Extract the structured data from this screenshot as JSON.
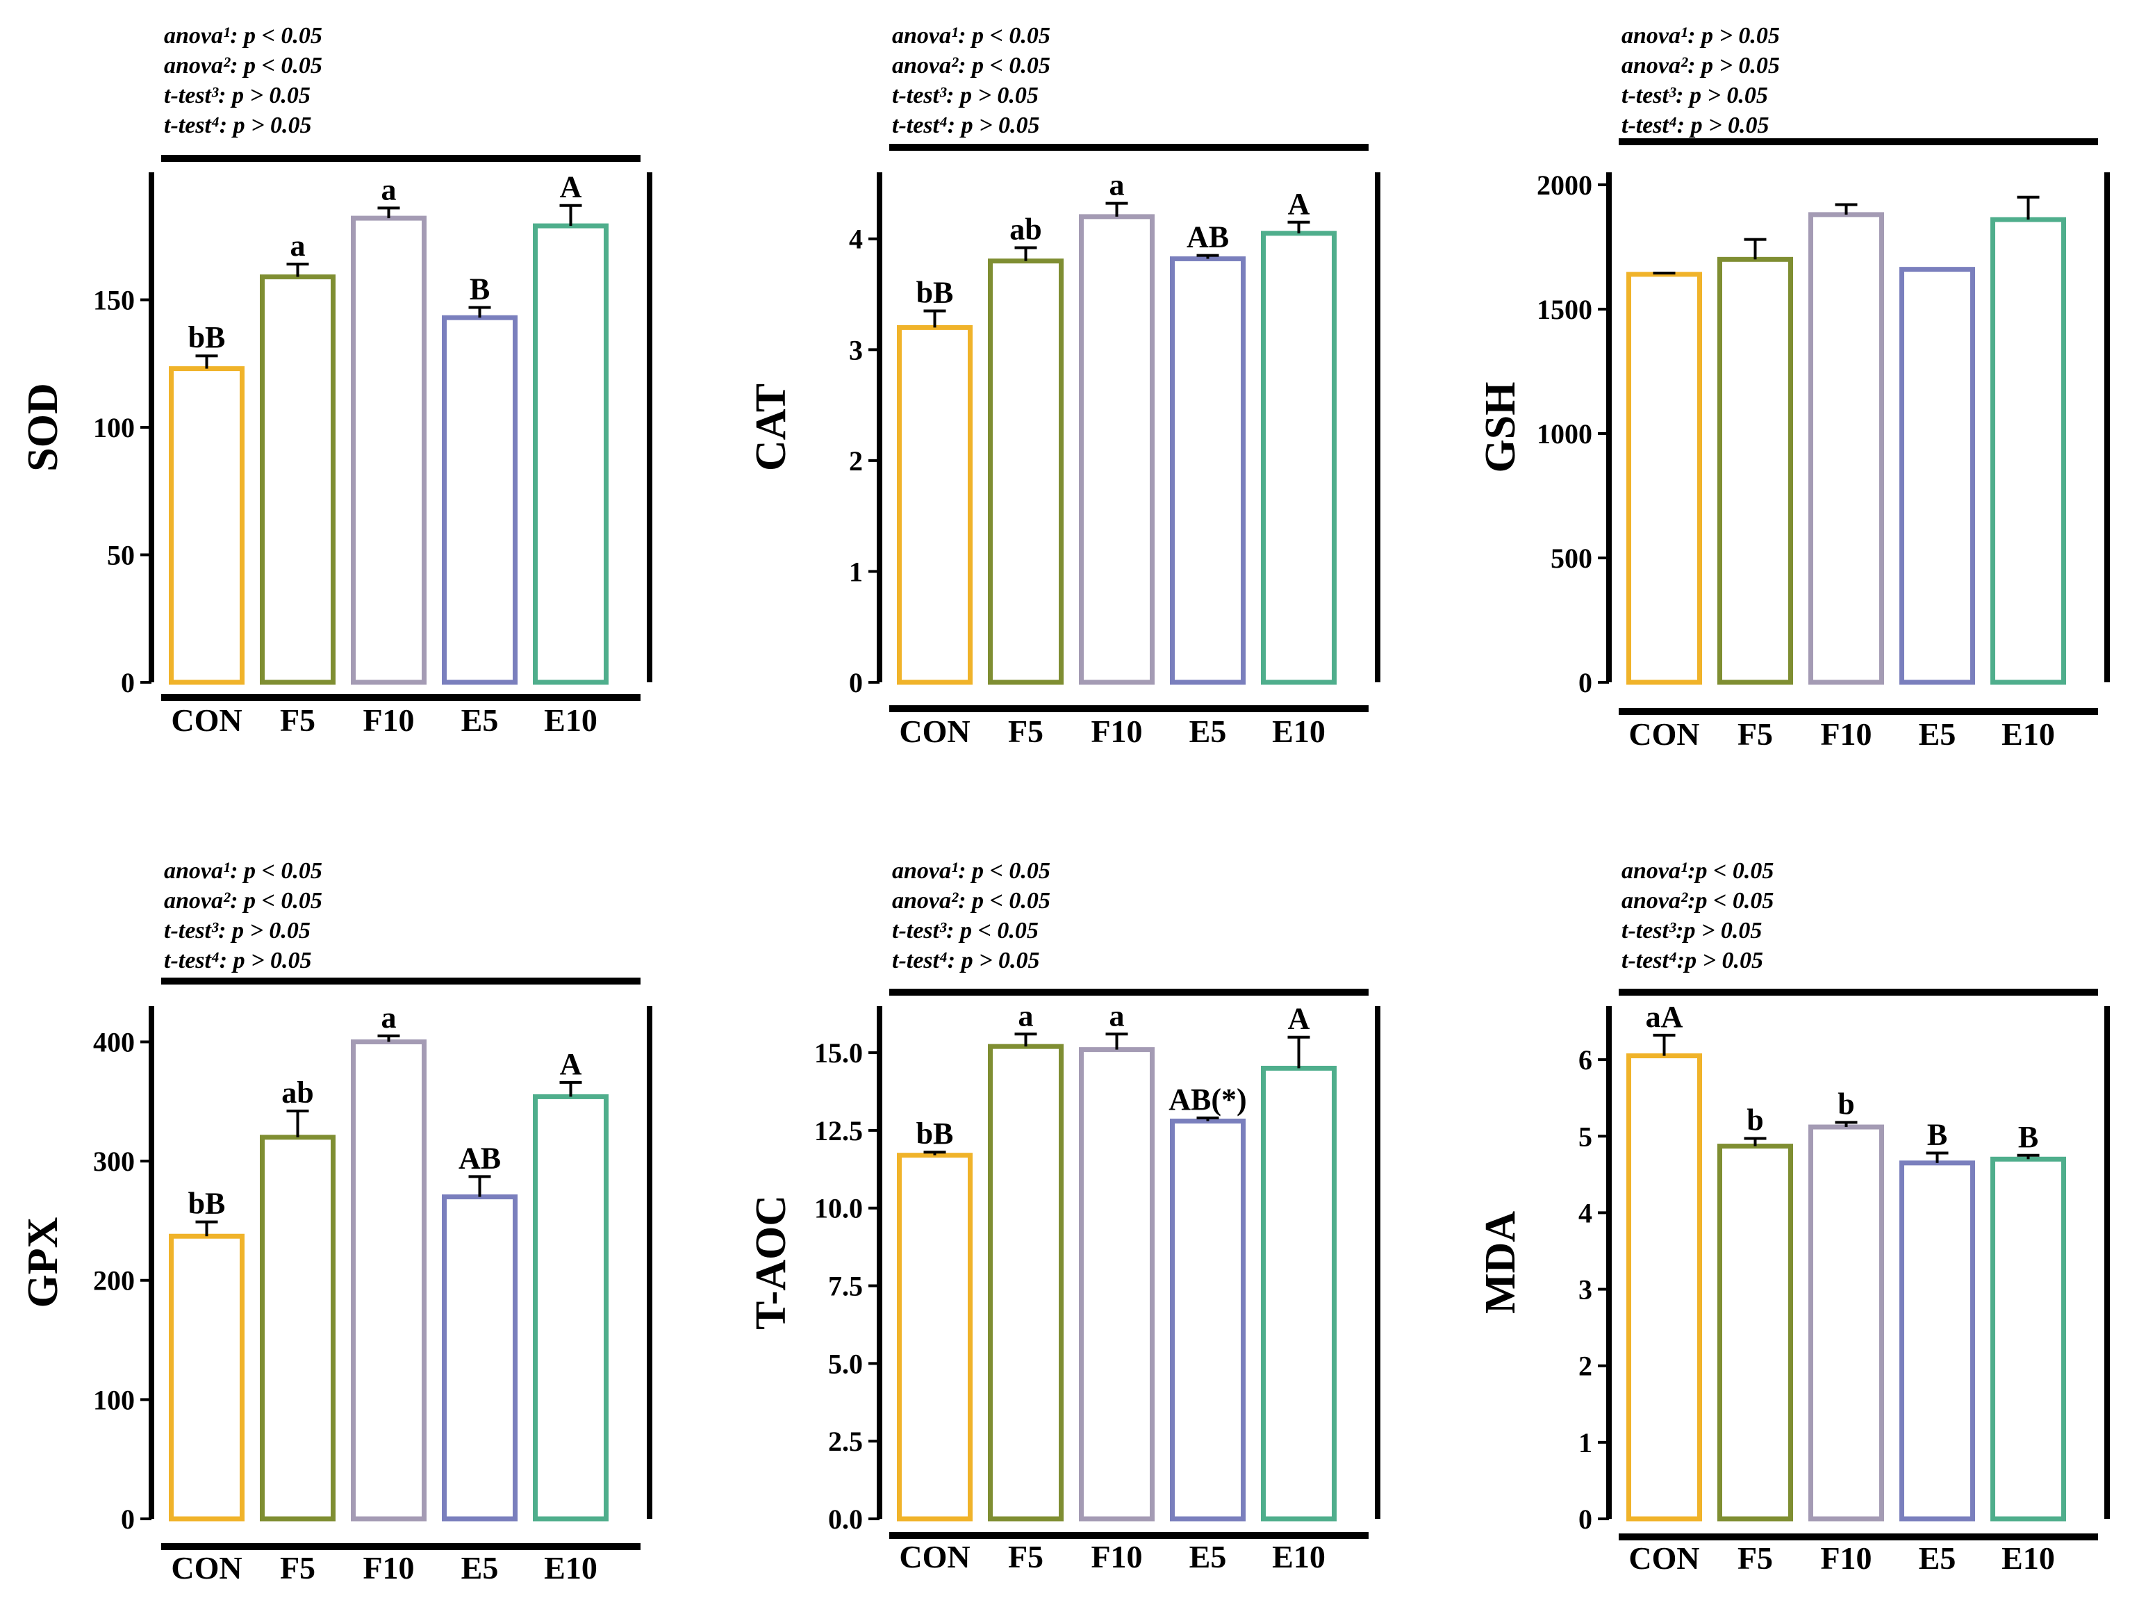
{
  "chart_data": [
    {
      "type": "bar",
      "ylabel": "SOD",
      "categories": [
        "CON",
        "F5",
        "F10",
        "E5",
        "E10"
      ],
      "values": [
        123,
        159,
        182,
        143,
        179
      ],
      "errors": [
        5,
        5,
        4,
        4,
        8
      ],
      "labels": [
        "bB",
        "a",
        "a",
        "B",
        "A"
      ],
      "ylim": [
        0,
        200
      ],
      "yticks": [
        0,
        50,
        100,
        150
      ],
      "tick_labels": [
        "0",
        "50",
        "100",
        "150"
      ],
      "stats": [
        "anova¹: p < 0.05",
        "anova²: p < 0.05",
        "t-test³: p > 0.05",
        "t-test⁴: p > 0.05"
      ]
    },
    {
      "type": "bar",
      "ylabel": "CAT",
      "categories": [
        "CON",
        "F5",
        "F10",
        "E5",
        "E10"
      ],
      "values": [
        3.2,
        3.8,
        4.2,
        3.82,
        4.05
      ],
      "errors": [
        0.15,
        0.12,
        0.12,
        0.03,
        0.1
      ],
      "labels": [
        "bB",
        "ab",
        "a",
        "AB",
        "A"
      ],
      "ylim": [
        0,
        4.6
      ],
      "yticks": [
        0,
        1,
        2,
        3,
        4
      ],
      "tick_labels": [
        "0",
        "1",
        "2",
        "3",
        "4"
      ],
      "stats": [
        "anova¹: p < 0.05",
        "anova²: p < 0.05",
        "t-test³: p > 0.05",
        "t-test⁴: p > 0.05"
      ]
    },
    {
      "type": "bar",
      "ylabel": "GSH",
      "categories": [
        "CON",
        "F5",
        "F10",
        "E5",
        "E10"
      ],
      "values": [
        1640,
        1700,
        1880,
        1660,
        1860
      ],
      "errors": [
        5,
        80,
        40,
        0,
        90
      ],
      "labels": [
        "",
        "",
        "",
        "",
        ""
      ],
      "ylim": [
        0,
        2050
      ],
      "yticks": [
        0,
        500,
        1000,
        1500,
        2000
      ],
      "tick_labels": [
        "0",
        "500",
        "1000",
        "1500",
        "2000"
      ],
      "stats": [
        "anova¹: p > 0.05",
        "anova²: p > 0.05",
        "t-test³: p > 0.05",
        "t-test⁴: p > 0.05"
      ]
    },
    {
      "type": "bar",
      "ylabel": "GPX",
      "categories": [
        "CON",
        "F5",
        "F10",
        "E5",
        "E10"
      ],
      "values": [
        237,
        320,
        400,
        270,
        354
      ],
      "errors": [
        12,
        22,
        5,
        17,
        12
      ],
      "labels": [
        "bB",
        "ab",
        "a",
        "AB",
        "A"
      ],
      "ylim": [
        0,
        430
      ],
      "yticks": [
        0,
        100,
        200,
        300,
        400
      ],
      "tick_labels": [
        "0",
        "100",
        "200",
        "300",
        "400"
      ],
      "stats": [
        "anova¹: p < 0.05",
        "anova²: p < 0.05",
        "t-test³: p > 0.05",
        "t-test⁴: p > 0.05"
      ]
    },
    {
      "type": "bar",
      "ylabel": "T-AOC",
      "categories": [
        "CON",
        "F5",
        "F10",
        "E5",
        "E10"
      ],
      "values": [
        11.7,
        15.2,
        15.1,
        12.8,
        14.5
      ],
      "errors": [
        0.1,
        0.4,
        0.5,
        0.1,
        1.0
      ],
      "labels": [
        "bB",
        "a",
        "a",
        "AB(*)",
        "A"
      ],
      "ylim": [
        0,
        16.5
      ],
      "yticks": [
        0,
        2.5,
        5,
        7.5,
        10,
        12.5,
        15
      ],
      "tick_labels": [
        "0.0",
        "2.5",
        "5.0",
        "7.5",
        "10.0",
        "12.5",
        "15.0"
      ],
      "stats": [
        "anova¹: p < 0.05",
        "anova²: p < 0.05",
        "t-test³: p < 0.05",
        "t-test⁴: p > 0.05"
      ]
    },
    {
      "type": "bar",
      "ylabel": "MDA",
      "categories": [
        "CON",
        "F5",
        "F10",
        "E5",
        "E10"
      ],
      "values": [
        6.05,
        4.87,
        5.12,
        4.65,
        4.7
      ],
      "errors": [
        0.27,
        0.1,
        0.06,
        0.13,
        0.05
      ],
      "labels": [
        "aA",
        "b",
        "b",
        "B",
        "B"
      ],
      "ylim": [
        0,
        6.7
      ],
      "yticks": [
        0,
        1,
        2,
        3,
        4,
        5,
        6
      ],
      "tick_labels": [
        "0",
        "1",
        "2",
        "3",
        "4",
        "5",
        "6"
      ],
      "stats": [
        "anova¹:p < 0.05",
        "anova²:p < 0.05",
        "t-test³:p > 0.05",
        "t-test⁴:p > 0.05"
      ]
    }
  ],
  "colors": [
    "#f0b32a",
    "#7f8e32",
    "#a49bb4",
    "#7a7fbd",
    "#4fae8c"
  ]
}
